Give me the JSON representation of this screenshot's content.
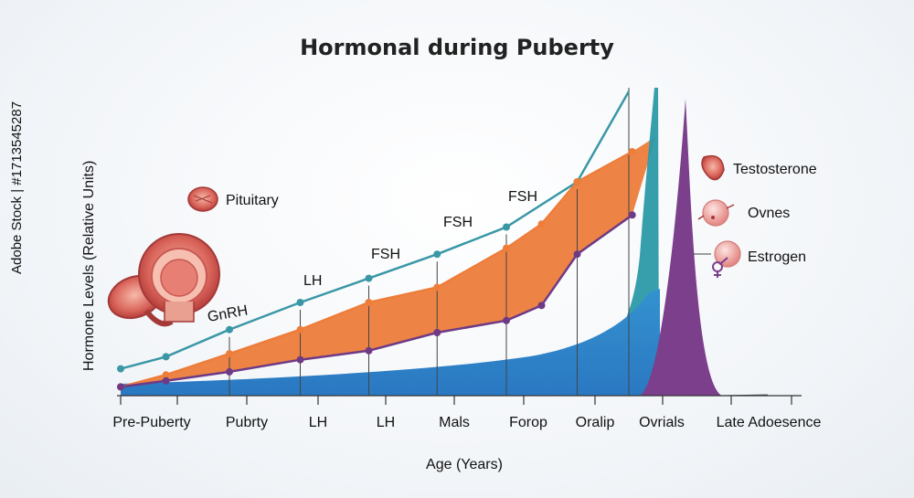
{
  "watermark": "Adobe Stock | #1713545287",
  "chart_data": {
    "type": "line",
    "title": "Hormonal during Puberty",
    "xlabel": "Age (Years)",
    "ylabel": "Hormone Levels (Relative Units)",
    "categories": [
      "Pre-Puberty",
      "Pubrty",
      "LH",
      "LH",
      "Mals",
      "Forop",
      "Oralip",
      "Ovrials",
      "Late Adoesence"
    ],
    "ylim": [
      0,
      100
    ],
    "grid": false,
    "series": [
      {
        "name": "",
        "color": "#3a97a6",
        "x": [
          0,
          0.8,
          1.75,
          2.75,
          3.75,
          4.75,
          5.75,
          6.75,
          7.5
        ],
        "values": [
          8,
          12,
          21,
          30,
          38,
          46,
          55,
          70,
          100
        ]
      },
      {
        "name": "",
        "color": "#ee7d3a",
        "x": [
          0,
          0.8,
          1.75,
          2.75,
          3.75,
          4.75,
          5.75,
          6.25,
          6.75,
          7.55
        ],
        "values": [
          2,
          6,
          13,
          21,
          30,
          35,
          48,
          56,
          70,
          80
        ]
      },
      {
        "name": "",
        "color": "#6e3a86",
        "x": [
          0,
          0.8,
          1.75,
          2.75,
          3.75,
          4.75,
          5.75,
          6.25,
          6.75,
          7.55
        ],
        "values": [
          2,
          4,
          7,
          11,
          14,
          20,
          24,
          29,
          46,
          59
        ]
      }
    ],
    "point_annotations": [
      "GnRH",
      "LH",
      "FSH",
      "FSH",
      "FSH"
    ],
    "legend": [
      {
        "label": "Pituitary",
        "icon": "pituitary-icon"
      },
      {
        "label": "Testosterone",
        "icon": "testosterone-icon"
      },
      {
        "label": "Ovnes",
        "icon": "ovary-icon"
      },
      {
        "label": "Estrogen",
        "icon": "estrogen-icon"
      }
    ],
    "band_color": "#ec7a35",
    "area_color": "#3a8fcf",
    "peak_color": "#7b3f8c",
    "teal_peak_color": "#2c9aa8"
  }
}
